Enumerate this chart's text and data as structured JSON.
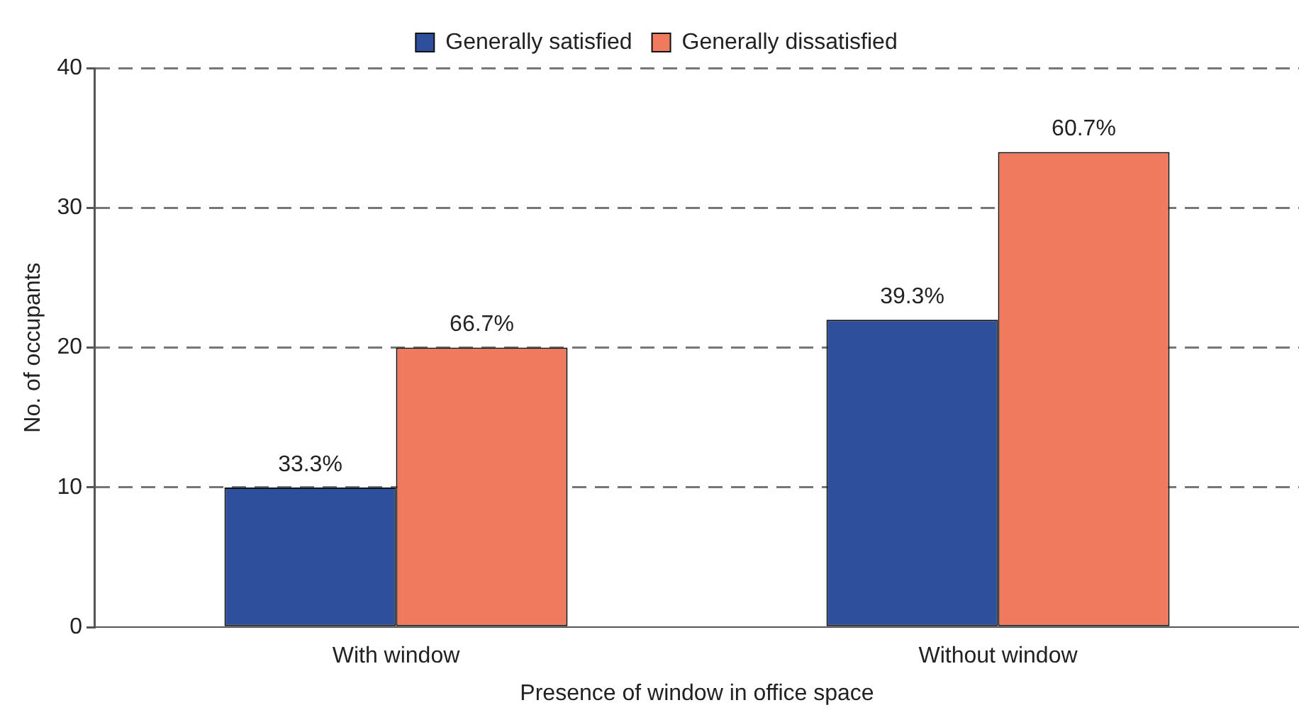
{
  "chart_data": {
    "type": "bar",
    "xlabel": "Presence of window in office space",
    "ylabel": "No. of occupants",
    "categories": [
      "With window",
      "Without window"
    ],
    "series": [
      {
        "name": "Generally satisfied",
        "color": "#2e4f9c",
        "values": [
          10,
          22
        ]
      },
      {
        "name": "Generally dissatisfied",
        "color": "#ef7a5e",
        "values": [
          20,
          34
        ]
      }
    ],
    "annotations": [
      {
        "text": "33.3%",
        "x": "With window",
        "y": 10
      },
      {
        "text": "66.7%",
        "x": "With window",
        "y": 20
      },
      {
        "text": "39.3%",
        "x": "Without window",
        "y": 22
      },
      {
        "text": "60.7%",
        "x": "Without window",
        "y": 34
      }
    ],
    "ylim": [
      0,
      40
    ],
    "yticks": [
      0,
      10,
      20,
      30,
      40
    ],
    "grid": "y",
    "legend": "top"
  }
}
